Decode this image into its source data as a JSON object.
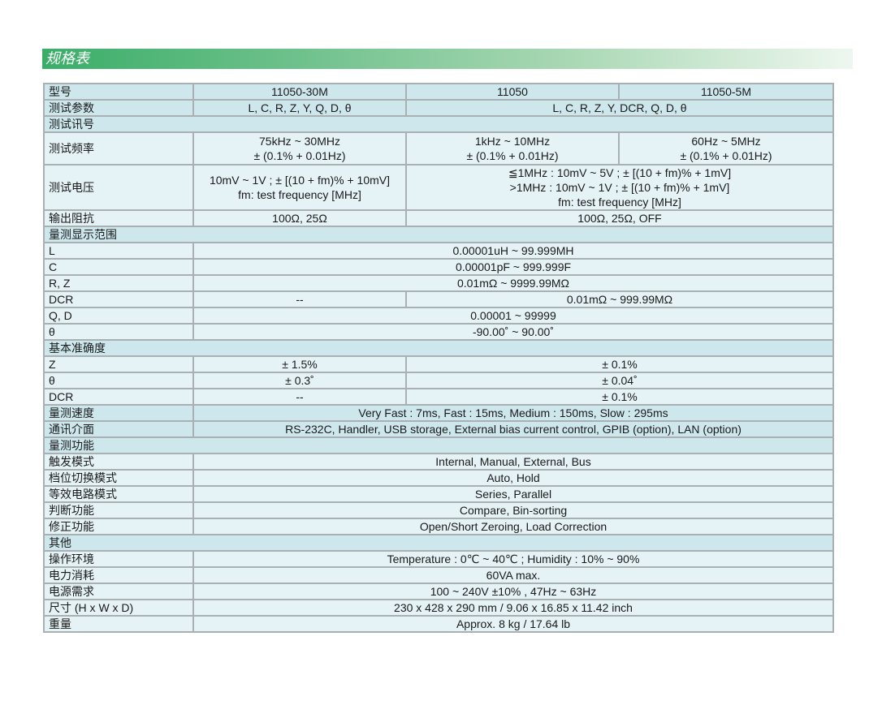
{
  "title": "规格表",
  "rows": [
    {
      "label": "型号",
      "cells": [
        "11050-30M",
        "11050",
        "11050-5M"
      ]
    },
    {
      "label": "测试参数",
      "cells": [
        "L, C, R, Z, Y, Q, D,  θ",
        "L, C, R, Z, Y, DCR, Q, D,  θ"
      ]
    },
    {
      "label": "测试讯号",
      "cells": []
    },
    {
      "label": "测试频率",
      "cells": [
        "75kHz ~ 30MHz\n± (0.1% + 0.01Hz)",
        "1kHz ~ 10MHz\n± (0.1% + 0.01Hz)",
        "60Hz ~ 5MHz\n± (0.1% + 0.01Hz)"
      ]
    },
    {
      "label": "测试电压",
      "cells": [
        "10mV ~ 1V ; ± [(10 + fm)% + 10mV]\nfm: test frequency [MHz]",
        "≦1MHz : 10mV ~ 5V ; ± [(10 + fm)% + 1mV]\n>1MHz : 10mV ~ 1V ; ± [(10 + fm)% + 1mV]\nfm: test frequency [MHz]"
      ]
    },
    {
      "label": "输出阻抗",
      "cells": [
        "100Ω, 25Ω",
        "100Ω, 25Ω, OFF"
      ]
    },
    {
      "label": "量测显示范围",
      "cells": []
    },
    {
      "label": "L",
      "cells": [
        "0.00001uH ~ 99.999MH"
      ]
    },
    {
      "label": "C",
      "cells": [
        "0.00001pF ~ 999.999F"
      ]
    },
    {
      "label": "R, Z",
      "cells": [
        "0.01mΩ ~ 9999.99MΩ"
      ]
    },
    {
      "label": "DCR",
      "cells": [
        "--",
        "0.01mΩ ~ 999.99MΩ"
      ]
    },
    {
      "label": "Q, D",
      "cells": [
        "0.00001 ~ 99999"
      ]
    },
    {
      "label": "θ",
      "cells": [
        "-90.00˚ ~ 90.00˚"
      ]
    },
    {
      "label": "基本准确度",
      "cells": []
    },
    {
      "label": "Z",
      "cells": [
        "± 1.5%",
        "± 0.1%"
      ]
    },
    {
      "label": "θ",
      "cells": [
        "± 0.3˚",
        "± 0.04˚"
      ]
    },
    {
      "label": "DCR",
      "cells": [
        "--",
        "± 0.1%"
      ]
    },
    {
      "label": "量测速度",
      "cells": [
        "Very Fast : 7ms, Fast : 15ms, Medium : 150ms, Slow : 295ms"
      ]
    },
    {
      "label": "通讯介面",
      "cells": [
        "RS-232C, Handler, USB storage, External bias current control, GPIB (option), LAN (option)"
      ]
    },
    {
      "label": "量测功能",
      "cells": []
    },
    {
      "label": "触发模式",
      "cells": [
        "Internal, Manual, External, Bus"
      ]
    },
    {
      "label": "档位切换模式",
      "cells": [
        "Auto, Hold"
      ]
    },
    {
      "label": "等效电路模式",
      "cells": [
        "Series, Parallel"
      ]
    },
    {
      "label": "判断功能",
      "cells": [
        "Compare,  Bin-sorting"
      ]
    },
    {
      "label": "修正功能",
      "cells": [
        "Open/Short Zeroing, Load Correction"
      ]
    },
    {
      "label": "其他",
      "cells": []
    },
    {
      "label": "操作环境",
      "cells": [
        "Temperature : 0℃ ~ 40℃ ; Humidity : 10% ~ 90%"
      ]
    },
    {
      "label": "电力消耗",
      "cells": [
        "60VA max."
      ]
    },
    {
      "label": "电源需求",
      "cells": [
        "100 ~ 240V ±10% , 47Hz ~ 63Hz"
      ]
    },
    {
      "label": "尺寸 (H x W x D)",
      "cells": [
        "230 x 428 x 290 mm / 9.06 x 16.85 x 11.42 inch"
      ]
    },
    {
      "label": "重量",
      "cells": [
        "Approx. 8 kg / 17.64 lb"
      ]
    }
  ]
}
